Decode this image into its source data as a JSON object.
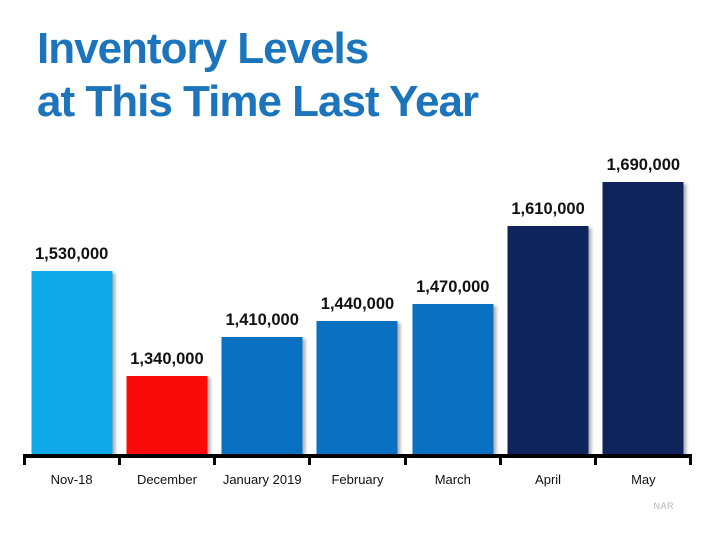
{
  "title": {
    "line1": "Inventory Levels",
    "line2": "at This Time Last Year"
  },
  "source_note": "NAR",
  "colors": {
    "title_blue": "#1B74BC",
    "axis_black": "#000000",
    "label_dark": "#111111",
    "highlight_light_blue": "#0FA8E8",
    "highlight_red": "#FB0A0A",
    "series_medium_blue": "#0A70C1",
    "series_navy": "#0D255C"
  },
  "chart_data": {
    "type": "bar",
    "title": "Inventory Levels at This Time Last Year",
    "xlabel": "",
    "ylabel": "",
    "categories": [
      "Nov-18",
      "December",
      "January 2019",
      "February",
      "March",
      "April",
      "May"
    ],
    "values": [
      1530000,
      1340000,
      1410000,
      1440000,
      1470000,
      1610000,
      1690000
    ],
    "value_labels": [
      "1,530,000",
      "1,340,000",
      "1,410,000",
      "1,440,000",
      "1,470,000",
      "1,610,000",
      "1,690,000"
    ],
    "bar_colors": [
      "#0FA8E8",
      "#FB0A0A",
      "#0A70C1",
      "#0A70C1",
      "#0A70C1",
      "#0D255C",
      "#0D255C"
    ],
    "ylim": [
      1200000,
      1700000
    ],
    "y_axis_shown": false,
    "grid": false,
    "legend": false,
    "data_label_position": "above-bars"
  }
}
